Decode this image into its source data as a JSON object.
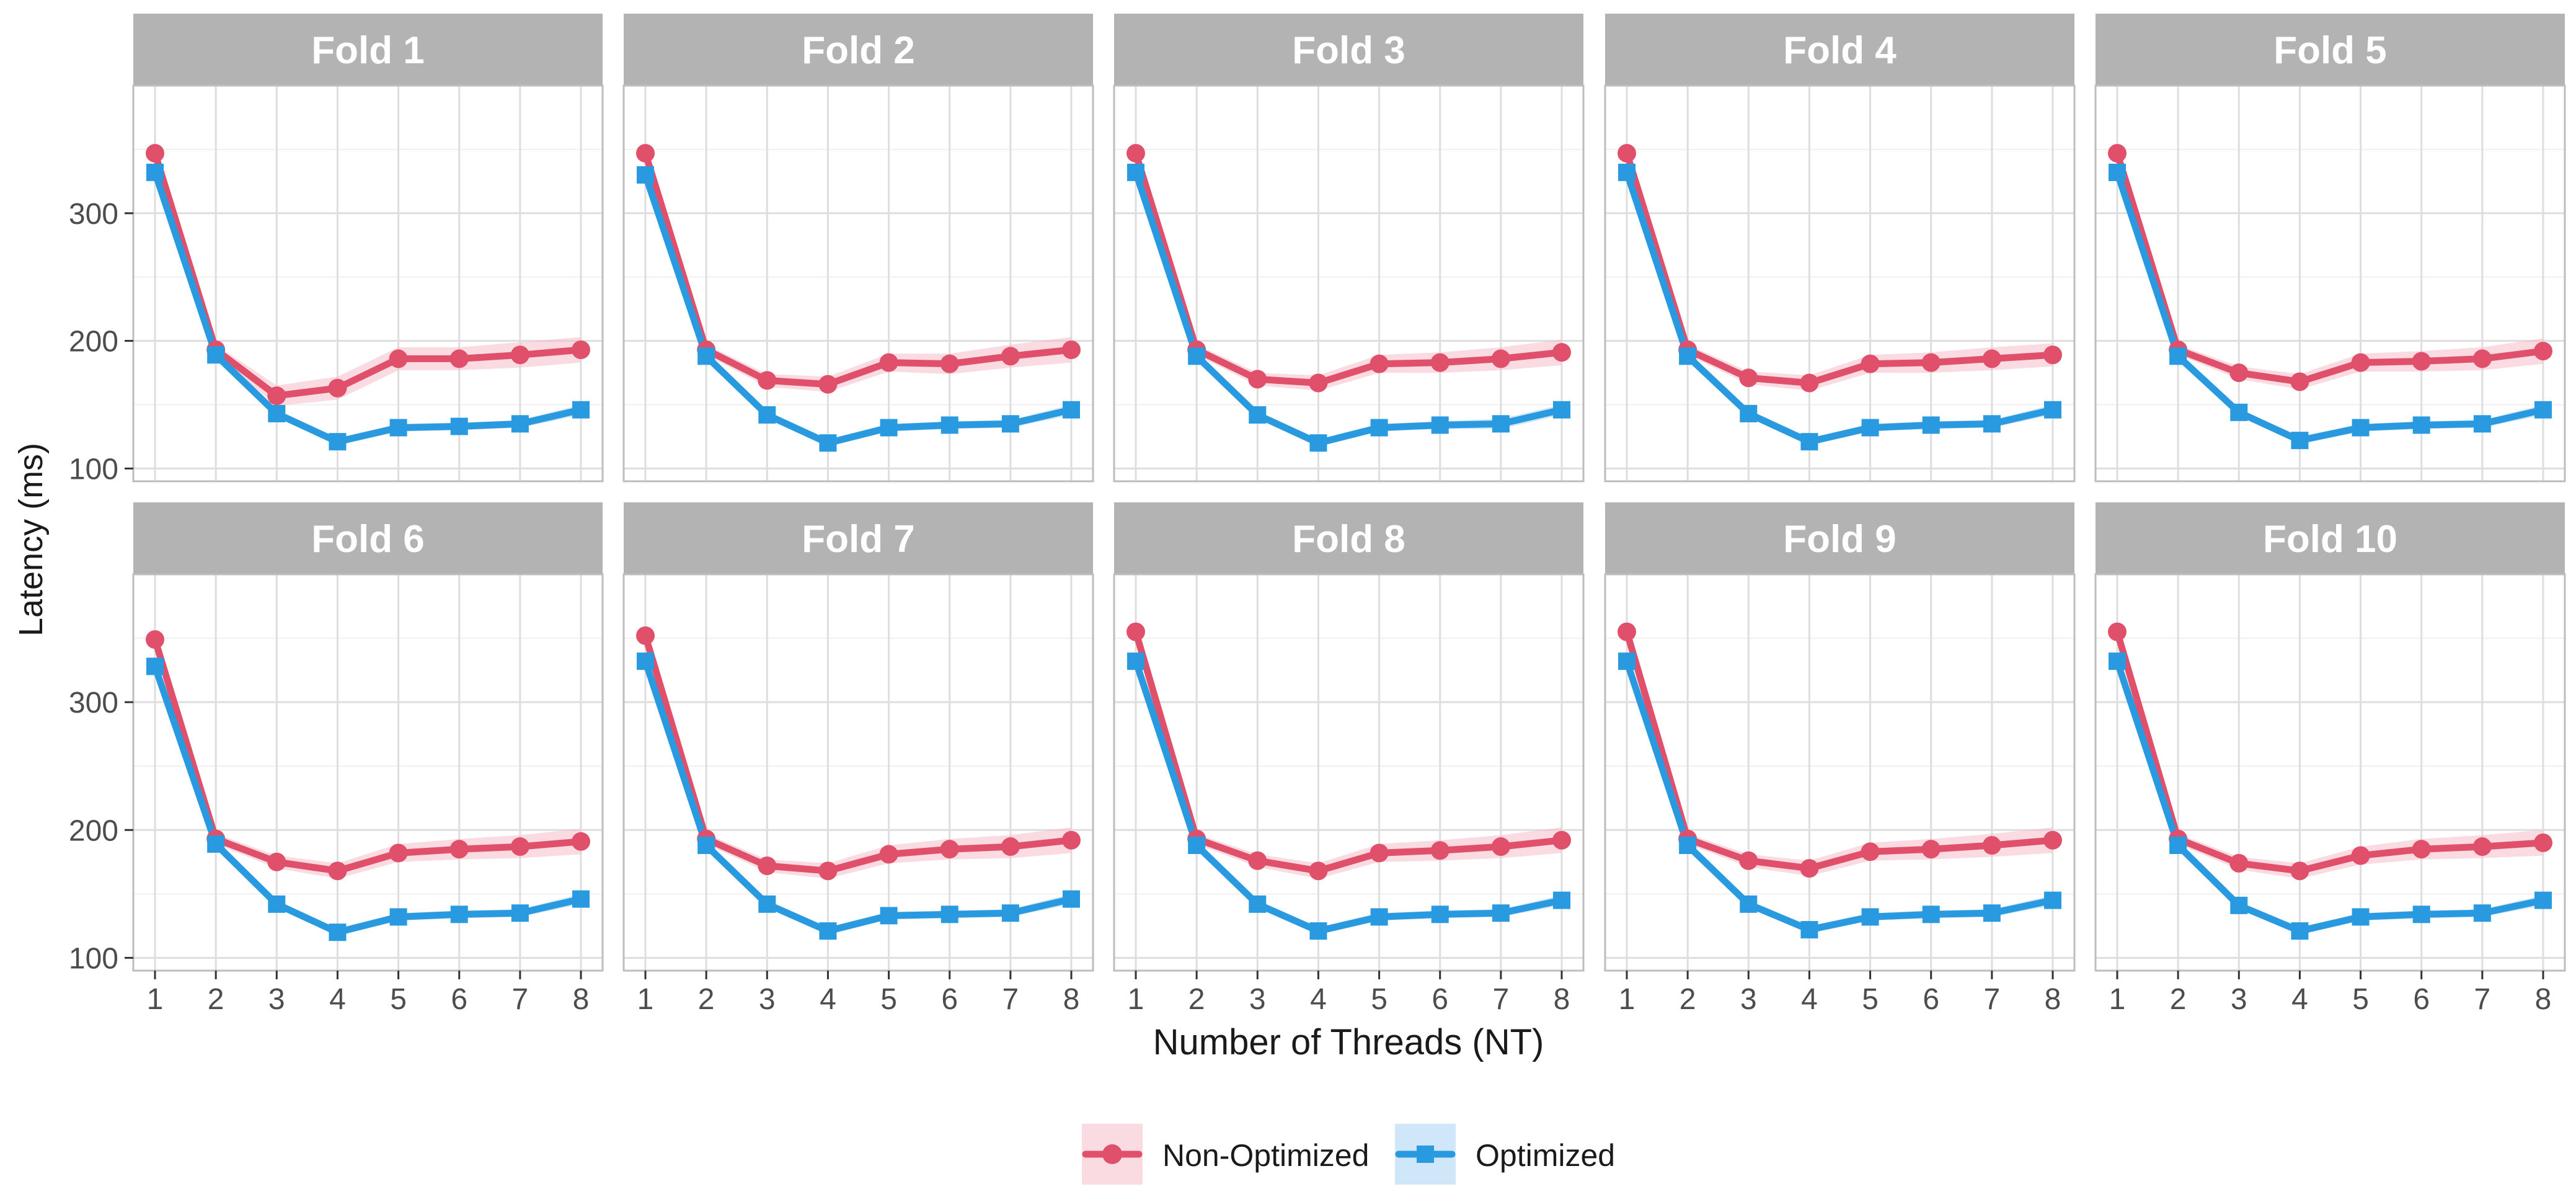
{
  "chart_data": {
    "type": "line",
    "ylabel": "Latency (ms)",
    "xlabel": "Number of Threads (NT)",
    "x": [
      1,
      2,
      3,
      4,
      5,
      6,
      7,
      8
    ],
    "x_ticks": [
      "1",
      "2",
      "3",
      "4",
      "5",
      "6",
      "7",
      "8"
    ],
    "ylim": [
      90,
      400
    ],
    "y_ticks": [
      100,
      200,
      300
    ],
    "y_tick_labels": [
      "100",
      "200",
      "300"
    ],
    "grid": true,
    "legend_position": "bottom",
    "series_styles": [
      {
        "name": "Non-Optimized",
        "color": "#e0506a",
        "band_color": "#f4b8c4",
        "marker": "circle"
      },
      {
        "name": "Optimized",
        "color": "#2a9ae0",
        "band_color": "#9fd0f2",
        "marker": "square"
      }
    ],
    "panels": [
      {
        "title": "Fold 1",
        "series": [
          {
            "name": "Non-Optimized",
            "values": [
              347,
              193,
              157,
              163,
              186,
              186,
              189,
              193
            ],
            "band": [
              5,
              4,
              8,
              9,
              9,
              9,
              10,
              10
            ]
          },
          {
            "name": "Optimized",
            "values": [
              332,
              189,
              143,
              121,
              132,
              133,
              135,
              146
            ],
            "band": [
              4,
              4,
              3,
              3,
              3,
              3,
              3,
              4
            ]
          }
        ]
      },
      {
        "title": "Fold 2",
        "series": [
          {
            "name": "Non-Optimized",
            "values": [
              347,
              193,
              169,
              166,
              183,
              182,
              188,
              193
            ],
            "band": [
              5,
              4,
              5,
              6,
              7,
              8,
              9,
              10
            ]
          },
          {
            "name": "Optimized",
            "values": [
              330,
              188,
              142,
              120,
              132,
              134,
              135,
              146
            ],
            "band": [
              4,
              4,
              3,
              3,
              3,
              3,
              3,
              4
            ]
          }
        ]
      },
      {
        "title": "Fold 3",
        "series": [
          {
            "name": "Non-Optimized",
            "values": [
              347,
              193,
              170,
              167,
              182,
              183,
              186,
              191
            ],
            "band": [
              5,
              4,
              5,
              6,
              7,
              8,
              9,
              10
            ]
          },
          {
            "name": "Optimized",
            "values": [
              332,
              188,
              142,
              120,
              132,
              134,
              135,
              146
            ],
            "band": [
              4,
              4,
              3,
              3,
              3,
              3,
              4,
              4
            ]
          }
        ]
      },
      {
        "title": "Fold 4",
        "series": [
          {
            "name": "Non-Optimized",
            "values": [
              347,
              193,
              171,
              167,
              182,
              183,
              186,
              189
            ],
            "band": [
              5,
              4,
              5,
              6,
              7,
              8,
              9,
              9
            ]
          },
          {
            "name": "Optimized",
            "values": [
              332,
              188,
              143,
              121,
              132,
              134,
              135,
              146
            ],
            "band": [
              4,
              4,
              3,
              3,
              3,
              3,
              3,
              4
            ]
          }
        ]
      },
      {
        "title": "Fold 5",
        "series": [
          {
            "name": "Non-Optimized",
            "values": [
              347,
              193,
              175,
              168,
              183,
              184,
              186,
              192
            ],
            "band": [
              5,
              4,
              5,
              6,
              7,
              8,
              9,
              10
            ]
          },
          {
            "name": "Optimized",
            "values": [
              332,
              188,
              144,
              122,
              132,
              134,
              135,
              146
            ],
            "band": [
              4,
              4,
              3,
              3,
              3,
              3,
              3,
              4
            ]
          }
        ]
      },
      {
        "title": "Fold 6",
        "series": [
          {
            "name": "Non-Optimized",
            "values": [
              349,
              193,
              175,
              168,
              182,
              185,
              187,
              191
            ],
            "band": [
              5,
              4,
              5,
              6,
              7,
              8,
              9,
              10
            ]
          },
          {
            "name": "Optimized",
            "values": [
              328,
              189,
              142,
              120,
              132,
              134,
              135,
              146
            ],
            "band": [
              4,
              4,
              3,
              3,
              3,
              3,
              3,
              4
            ]
          }
        ]
      },
      {
        "title": "Fold 7",
        "series": [
          {
            "name": "Non-Optimized",
            "values": [
              352,
              193,
              172,
              168,
              181,
              185,
              187,
              192
            ],
            "band": [
              5,
              4,
              5,
              6,
              7,
              8,
              9,
              10
            ]
          },
          {
            "name": "Optimized",
            "values": [
              332,
              188,
              142,
              121,
              133,
              134,
              135,
              146
            ],
            "band": [
              4,
              4,
              3,
              3,
              3,
              3,
              3,
              4
            ]
          }
        ]
      },
      {
        "title": "Fold 8",
        "series": [
          {
            "name": "Non-Optimized",
            "values": [
              355,
              193,
              176,
              168,
              182,
              184,
              187,
              192
            ],
            "band": [
              5,
              4,
              5,
              6,
              7,
              8,
              9,
              10
            ]
          },
          {
            "name": "Optimized",
            "values": [
              332,
              188,
              142,
              121,
              132,
              134,
              135,
              145
            ],
            "band": [
              4,
              4,
              3,
              3,
              3,
              3,
              3,
              4
            ]
          }
        ]
      },
      {
        "title": "Fold 9",
        "series": [
          {
            "name": "Non-Optimized",
            "values": [
              355,
              193,
              176,
              170,
              183,
              185,
              188,
              192
            ],
            "band": [
              5,
              4,
              5,
              6,
              7,
              8,
              9,
              10
            ]
          },
          {
            "name": "Optimized",
            "values": [
              332,
              188,
              142,
              122,
              132,
              134,
              135,
              145
            ],
            "band": [
              4,
              4,
              3,
              3,
              3,
              3,
              3,
              4
            ]
          }
        ]
      },
      {
        "title": "Fold 10",
        "series": [
          {
            "name": "Non-Optimized",
            "values": [
              355,
              193,
              174,
              168,
              180,
              185,
              187,
              190
            ],
            "band": [
              5,
              4,
              5,
              6,
              7,
              8,
              9,
              10
            ]
          },
          {
            "name": "Optimized",
            "values": [
              332,
              188,
              141,
              121,
              132,
              134,
              135,
              145
            ],
            "band": [
              4,
              4,
              3,
              3,
              3,
              3,
              3,
              4
            ]
          }
        ]
      }
    ]
  }
}
